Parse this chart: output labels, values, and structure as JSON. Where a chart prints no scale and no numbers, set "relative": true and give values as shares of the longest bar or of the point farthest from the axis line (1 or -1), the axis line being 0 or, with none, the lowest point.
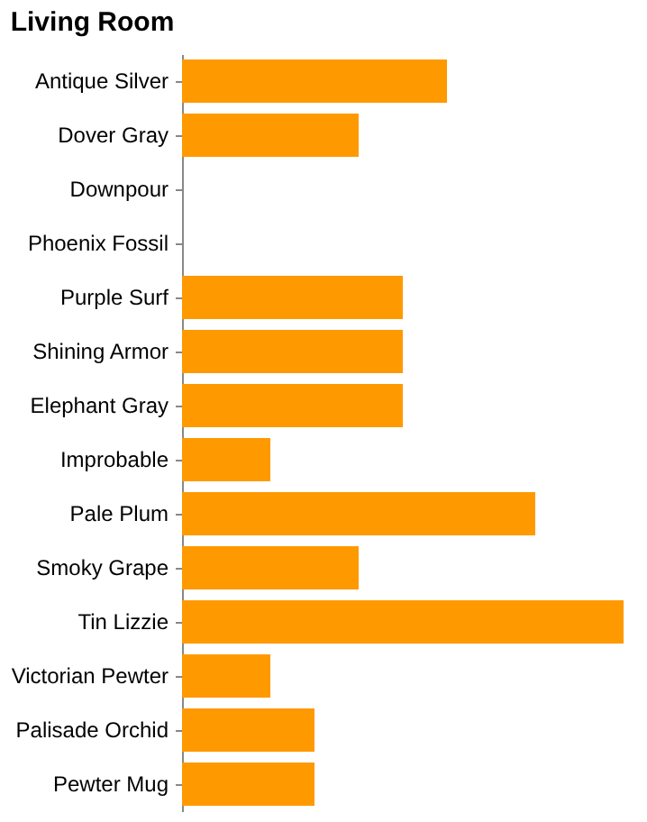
{
  "chart_data": {
    "type": "bar",
    "orientation": "horizontal",
    "relative": true,
    "title": "Living Room",
    "categories": [
      "Antique Silver",
      "Dover Gray",
      "Downpour",
      "Phoenix Fossil",
      "Purple Surf",
      "Shining Armor",
      "Elephant Gray",
      "Improbable",
      "Pale Plum",
      "Smoky Grape",
      "Tin Lizzie",
      "Victorian Pewter",
      "Palisade Orchid",
      "Pewter Mug"
    ],
    "values": [
      0.6,
      0.4,
      0,
      0,
      0.5,
      0.5,
      0.5,
      0.2,
      0.8,
      0.4,
      1,
      0.2,
      0.3,
      0.3
    ],
    "color": "#ff9900"
  }
}
